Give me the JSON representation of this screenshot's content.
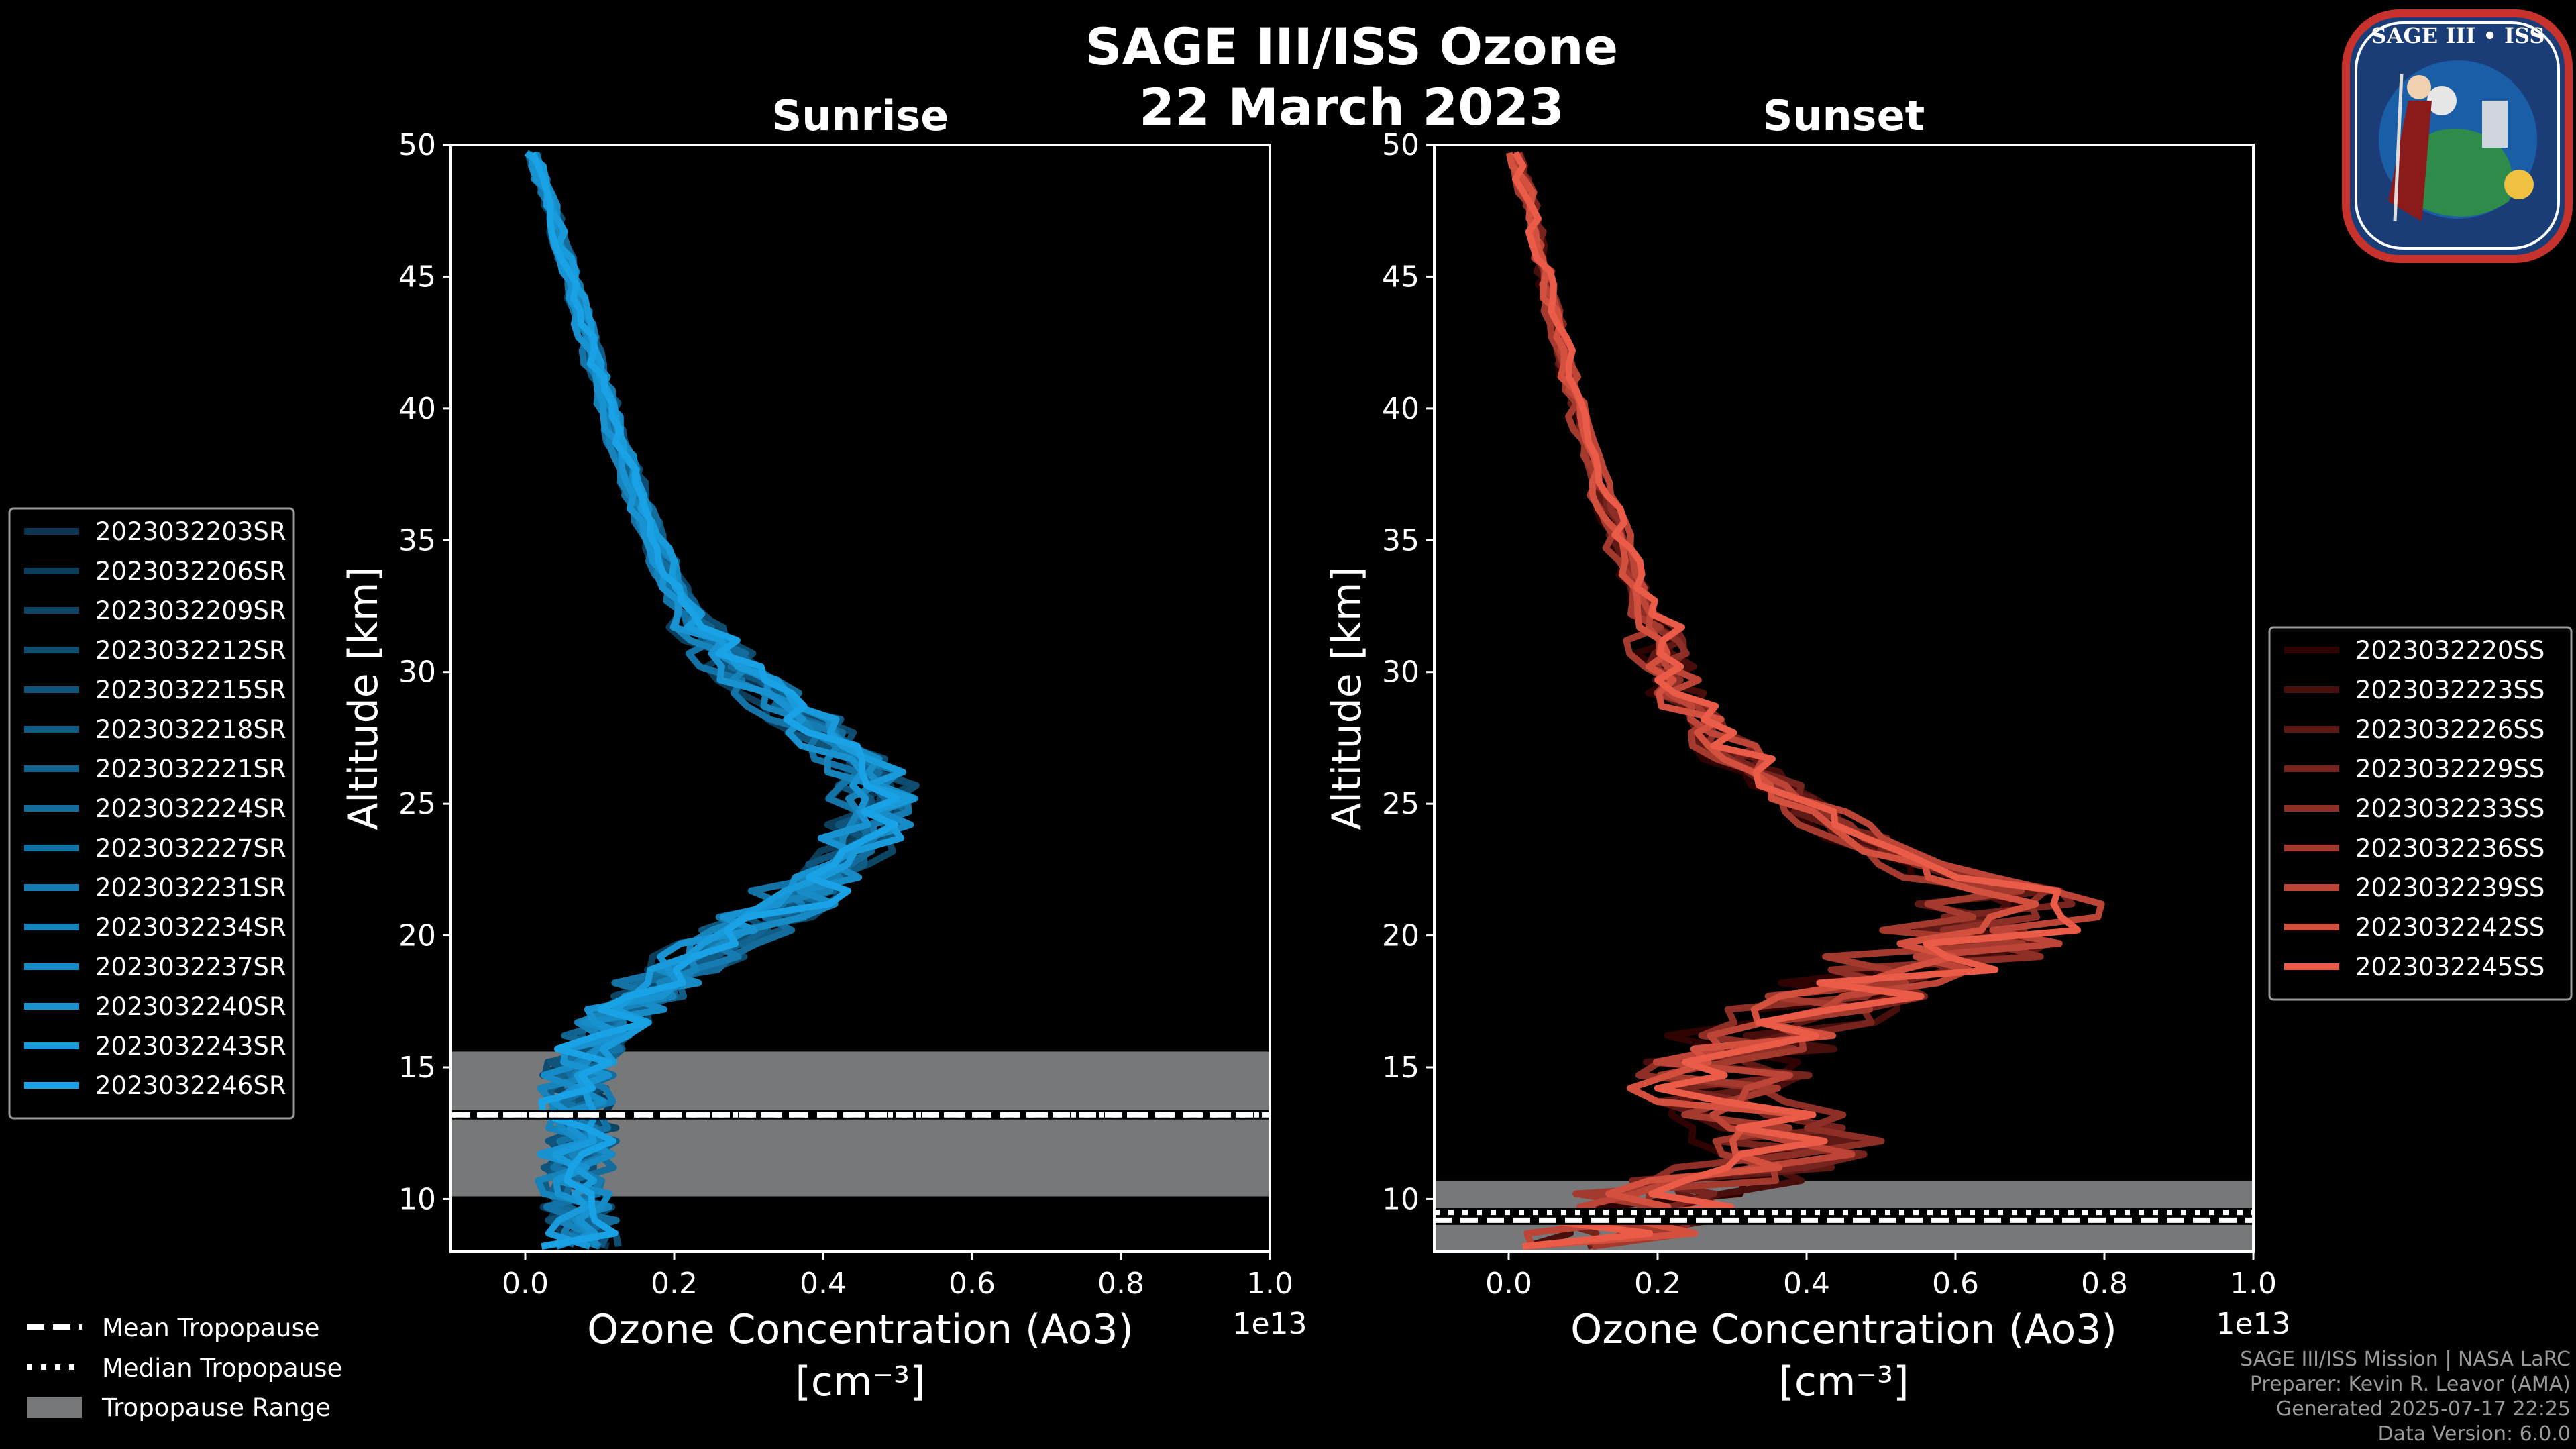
{
  "title": "SAGE III/ISS Ozone",
  "date": "22 March 2023",
  "colors": {
    "sunrise_dark": "#0b3550",
    "sunrise_light": "#1aa2e6",
    "sunset_dark": "#300303",
    "sunset_light": "#ea5b48",
    "tropo_band": "#77787a"
  },
  "common_legend": {
    "mean": "Mean Tropopause",
    "median": "Median Tropopause",
    "range": "Tropopause Range"
  },
  "credits": {
    "line1": "SAGE III/ISS Mission | NASA LaRC",
    "line2": "Preparer: Kevin R. Leavor (AMA)",
    "line3": "Generated 2025-07-17 22:25",
    "line4": "Data Version: 6.0.0"
  },
  "logo": {
    "name": "SAGE III • ISS",
    "icon": "mission-patch-icon"
  },
  "chart_data": [
    {
      "type": "line",
      "title": "Sunrise",
      "xlabel": "Ozone Concentration (Ao3)",
      "xunits": "[cm⁻³]",
      "ylabel": "Altitude [km]",
      "offset_label": "1e13",
      "xlim": [
        -0.1,
        1.0
      ],
      "ylim": [
        8,
        50
      ],
      "xticks": [
        "0.0",
        "0.2",
        "0.4",
        "0.6",
        "0.8",
        "1.0"
      ],
      "yticks": [
        "10",
        "15",
        "20",
        "25",
        "30",
        "35",
        "40",
        "45",
        "50"
      ],
      "tropopause": {
        "mean": 13.2,
        "median": 13.2,
        "min": 10.1,
        "max": 15.6
      },
      "base_profile": {
        "altitude": [
          8,
          9,
          10,
          11,
          12,
          13,
          14,
          15,
          16,
          17,
          18,
          19,
          20,
          21,
          22,
          23,
          24,
          25,
          26,
          27,
          28,
          29,
          30,
          31,
          32,
          33,
          34,
          35,
          36,
          37,
          38,
          40,
          42,
          44,
          46,
          48,
          50
        ],
        "ozone": [
          0.07,
          0.07,
          0.07,
          0.07,
          0.07,
          0.07,
          0.07,
          0.07,
          0.09,
          0.12,
          0.17,
          0.22,
          0.28,
          0.34,
          0.39,
          0.43,
          0.46,
          0.47,
          0.46,
          0.43,
          0.38,
          0.33,
          0.29,
          0.255,
          0.225,
          0.2,
          0.185,
          0.17,
          0.157,
          0.145,
          0.132,
          0.11,
          0.09,
          0.07,
          0.05,
          0.03,
          0.005
        ]
      },
      "legend": [
        "2023032203SR",
        "2023032206SR",
        "2023032209SR",
        "2023032212SR",
        "2023032215SR",
        "2023032218SR",
        "2023032221SR",
        "2023032224SR",
        "2023032227SR",
        "2023032231SR",
        "2023032234SR",
        "2023032237SR",
        "2023032240SR",
        "2023032243SR",
        "2023032246SR"
      ]
    },
    {
      "type": "line",
      "title": "Sunset",
      "xlabel": "Ozone Concentration (Ao3)",
      "xunits": "[cm⁻³]",
      "ylabel": "Altitude [km]",
      "offset_label": "1e13",
      "xlim": [
        -0.1,
        1.0
      ],
      "ylim": [
        8,
        50
      ],
      "xticks": [
        "0.0",
        "0.2",
        "0.4",
        "0.6",
        "0.8",
        "1.0"
      ],
      "yticks": [
        "10",
        "15",
        "20",
        "25",
        "30",
        "35",
        "40",
        "45",
        "50"
      ],
      "tropopause": {
        "mean": 9.2,
        "median": 9.5,
        "min": 8.0,
        "max": 10.7
      },
      "base_profile": {
        "altitude": [
          8.3,
          9,
          10,
          11,
          12,
          13,
          14,
          15,
          16,
          17,
          18,
          19,
          20,
          21,
          22,
          23,
          24,
          25,
          26,
          27,
          28,
          29,
          30,
          31,
          32,
          33,
          34,
          35,
          36,
          37,
          38,
          40,
          42,
          44,
          46,
          48,
          50
        ],
        "ozone": [
          0.12,
          0.14,
          0.2,
          0.3,
          0.38,
          0.33,
          0.26,
          0.28,
          0.33,
          0.38,
          0.46,
          0.56,
          0.64,
          0.66,
          0.6,
          0.52,
          0.44,
          0.38,
          0.33,
          0.29,
          0.26,
          0.23,
          0.21,
          0.2,
          0.185,
          0.17,
          0.158,
          0.145,
          0.133,
          0.12,
          0.11,
          0.09,
          0.072,
          0.055,
          0.04,
          0.025,
          0.005
        ]
      },
      "legend": [
        "2023032220SS",
        "2023032223SS",
        "2023032226SS",
        "2023032229SS",
        "2023032233SS",
        "2023032236SS",
        "2023032239SS",
        "2023032242SS",
        "2023032245SS"
      ]
    }
  ]
}
